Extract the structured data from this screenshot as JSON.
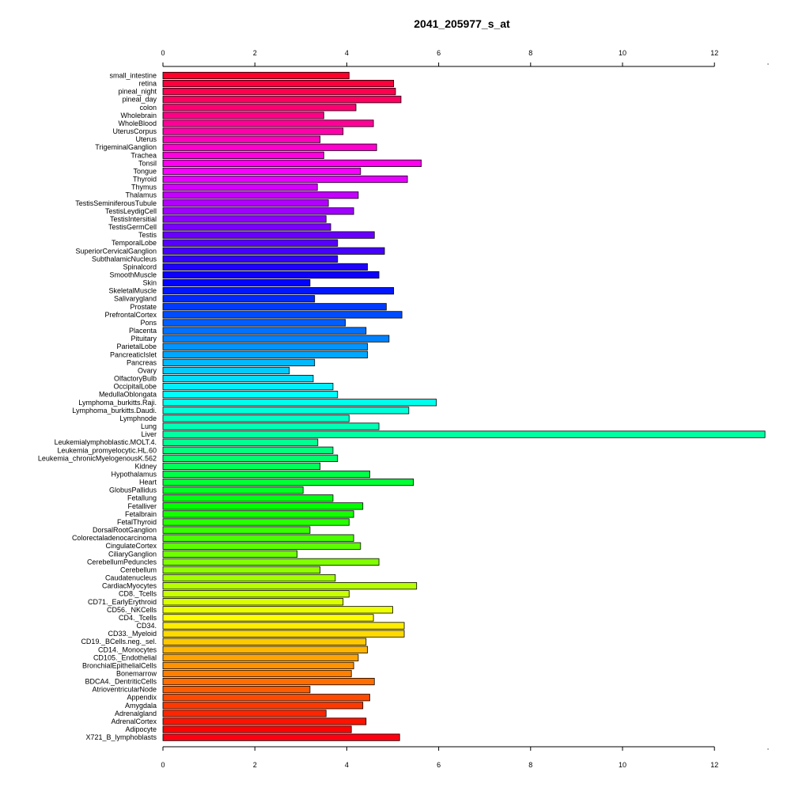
{
  "chart_data": {
    "type": "bar",
    "orientation": "horizontal",
    "title": "2041_205977_s_at",
    "xlabel": "",
    "ylabel": "",
    "xlim": [
      0,
      13.1
    ],
    "xticks": [
      0,
      2,
      4,
      6,
      8,
      10,
      12
    ],
    "axis_positions": [
      "top",
      "bottom"
    ],
    "grid": false,
    "legend": "none",
    "bar_color_scheme": "rainbow (red to red, top to bottom)",
    "categories": [
      "small_intestine",
      "retina",
      "pineal_night",
      "pineal_day",
      "colon",
      "Wholebrain",
      "WholeBlood",
      "UterusCorpus",
      "Uterus",
      "TrigeminalGanglion",
      "Trachea",
      "Tonsil",
      "Tongue",
      "Thyroid",
      "Thymus",
      "Thalamus",
      "TestisSeminiferousTubule",
      "TestisLeydigCell",
      "TestisIntersitial",
      "TestisGermCell",
      "Testis",
      "TemporalLobe",
      "SuperiorCervicalGanglion",
      "SubthalamicNucleus",
      "Spinalcord",
      "SmoothMuscle",
      "Skin",
      "SkeletalMuscle",
      "Salivarygland",
      "Prostate",
      "PrefrontalCortex",
      "Pons",
      "Placenta",
      "Pituitary",
      "ParietalLobe",
      "PancreaticIslet",
      "Pancreas",
      "Ovary",
      "OlfactoryBulb",
      "OccipitalLobe",
      "MedullaOblongata",
      "Lymphoma_burkitts.Raji.",
      "Lymphoma_burkitts.Daudi.",
      "Lymphnode",
      "Lung",
      "Liver",
      "Leukemialymphoblastic.MOLT.4.",
      "Leukemia_promyelocytic.HL.60",
      "Leukemia_chronicMyelogenousK.562",
      "Kidney",
      "Hypothalamus",
      "Heart",
      "GlobusPallidus",
      "Fetallung",
      "Fetalliver",
      "Fetalbrain",
      "FetalThyroid",
      "DorsalRootGanglion",
      "Colorectaladenocarcinoma",
      "CingulateCortex",
      "CiliaryGanglion",
      "CerebellumPeduncles",
      "Cerebellum",
      "Caudatenucleus",
      "CardiacMyocytes",
      "CD8._Tcells",
      "CD71._EarlyErythroid",
      "CD56._NKCells",
      "CD4._Tcells",
      "CD34.",
      "CD33._Myeloid",
      "CD19._BCells.neg._sel.",
      "CD14._Monocytes",
      "CD105._Endothelial",
      "BronchialEpithelialCells",
      "Bonemarrow",
      "BDCA4._DentriticCells",
      "AtrioventricularNode",
      "Appendix",
      "Amygdala",
      "Adrenalgland",
      "AdrenalCortex",
      "Adipocyte",
      "X721_B_lymphoblasts"
    ],
    "values": [
      4.05,
      5.02,
      5.06,
      5.18,
      4.2,
      3.5,
      4.58,
      3.92,
      3.42,
      4.65,
      3.5,
      5.62,
      4.3,
      5.32,
      3.36,
      4.25,
      3.6,
      4.15,
      3.55,
      3.65,
      4.6,
      3.8,
      4.82,
      3.8,
      4.45,
      4.7,
      3.2,
      5.02,
      3.3,
      4.86,
      5.2,
      3.97,
      4.42,
      4.92,
      4.45,
      4.45,
      3.3,
      2.75,
      3.27,
      3.7,
      3.8,
      5.95,
      5.35,
      4.05,
      4.7,
      13.1,
      3.37,
      3.7,
      3.8,
      3.42,
      4.5,
      5.45,
      3.05,
      3.7,
      4.35,
      4.15,
      4.05,
      3.2,
      4.15,
      4.3,
      2.92,
      4.7,
      3.42,
      3.75,
      5.52,
      4.05,
      3.92,
      5.0,
      4.58,
      5.25,
      5.25,
      4.42,
      4.45,
      4.25,
      4.15,
      4.1,
      4.6,
      3.2,
      4.5,
      4.35,
      3.55,
      4.42,
      4.1,
      5.15
    ]
  }
}
